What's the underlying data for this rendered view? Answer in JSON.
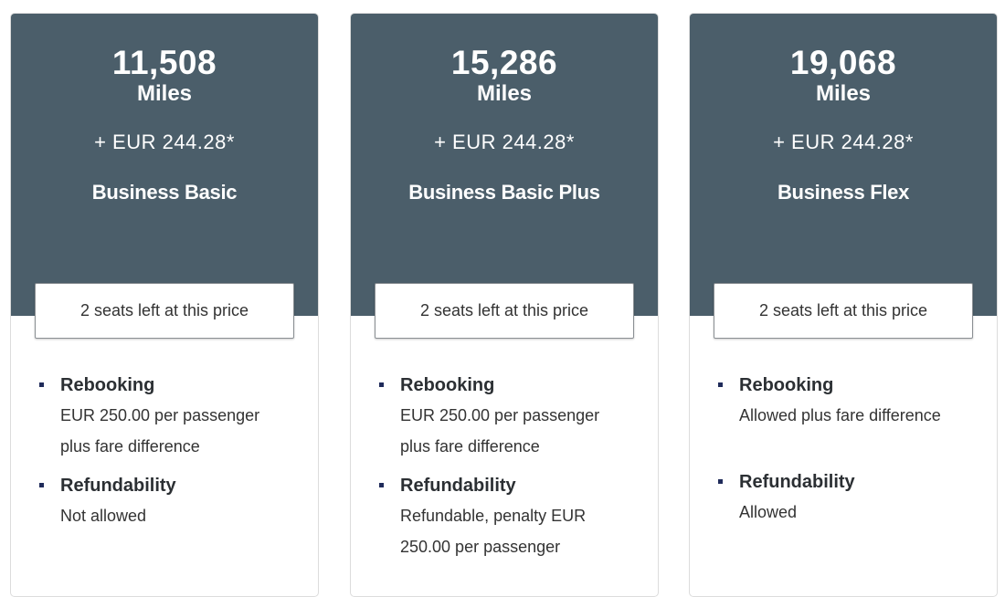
{
  "fares": [
    {
      "miles": "11,508",
      "unit": "Miles",
      "price": "+ EUR 244.28*",
      "tier": "Business Basic",
      "seats": "2 seats left at this price",
      "features": [
        {
          "name": "Rebooking",
          "detail": "EUR 250.00 per passenger plus fare difference"
        },
        {
          "name": "Refundability",
          "detail": "Not allowed"
        }
      ]
    },
    {
      "miles": "15,286",
      "unit": "Miles",
      "price": "+ EUR 244.28*",
      "tier": "Business Basic Plus",
      "seats": "2 seats left at this price",
      "features": [
        {
          "name": "Rebooking",
          "detail": "EUR 250.00 per passenger plus fare difference"
        },
        {
          "name": "Refundability",
          "detail": "Refundable, penalty EUR 250.00 per passenger"
        }
      ]
    },
    {
      "miles": "19,068",
      "unit": "Miles",
      "price": "+ EUR 244.28*",
      "tier": "Business Flex",
      "seats": "2 seats left at this price",
      "features": [
        {
          "name": "Rebooking",
          "detail": "Allowed plus fare difference"
        },
        {
          "name": "Refundability",
          "detail": "Allowed"
        }
      ]
    }
  ],
  "colors": {
    "header": "#4b5e6a",
    "bullet": "#1f2b5a"
  }
}
